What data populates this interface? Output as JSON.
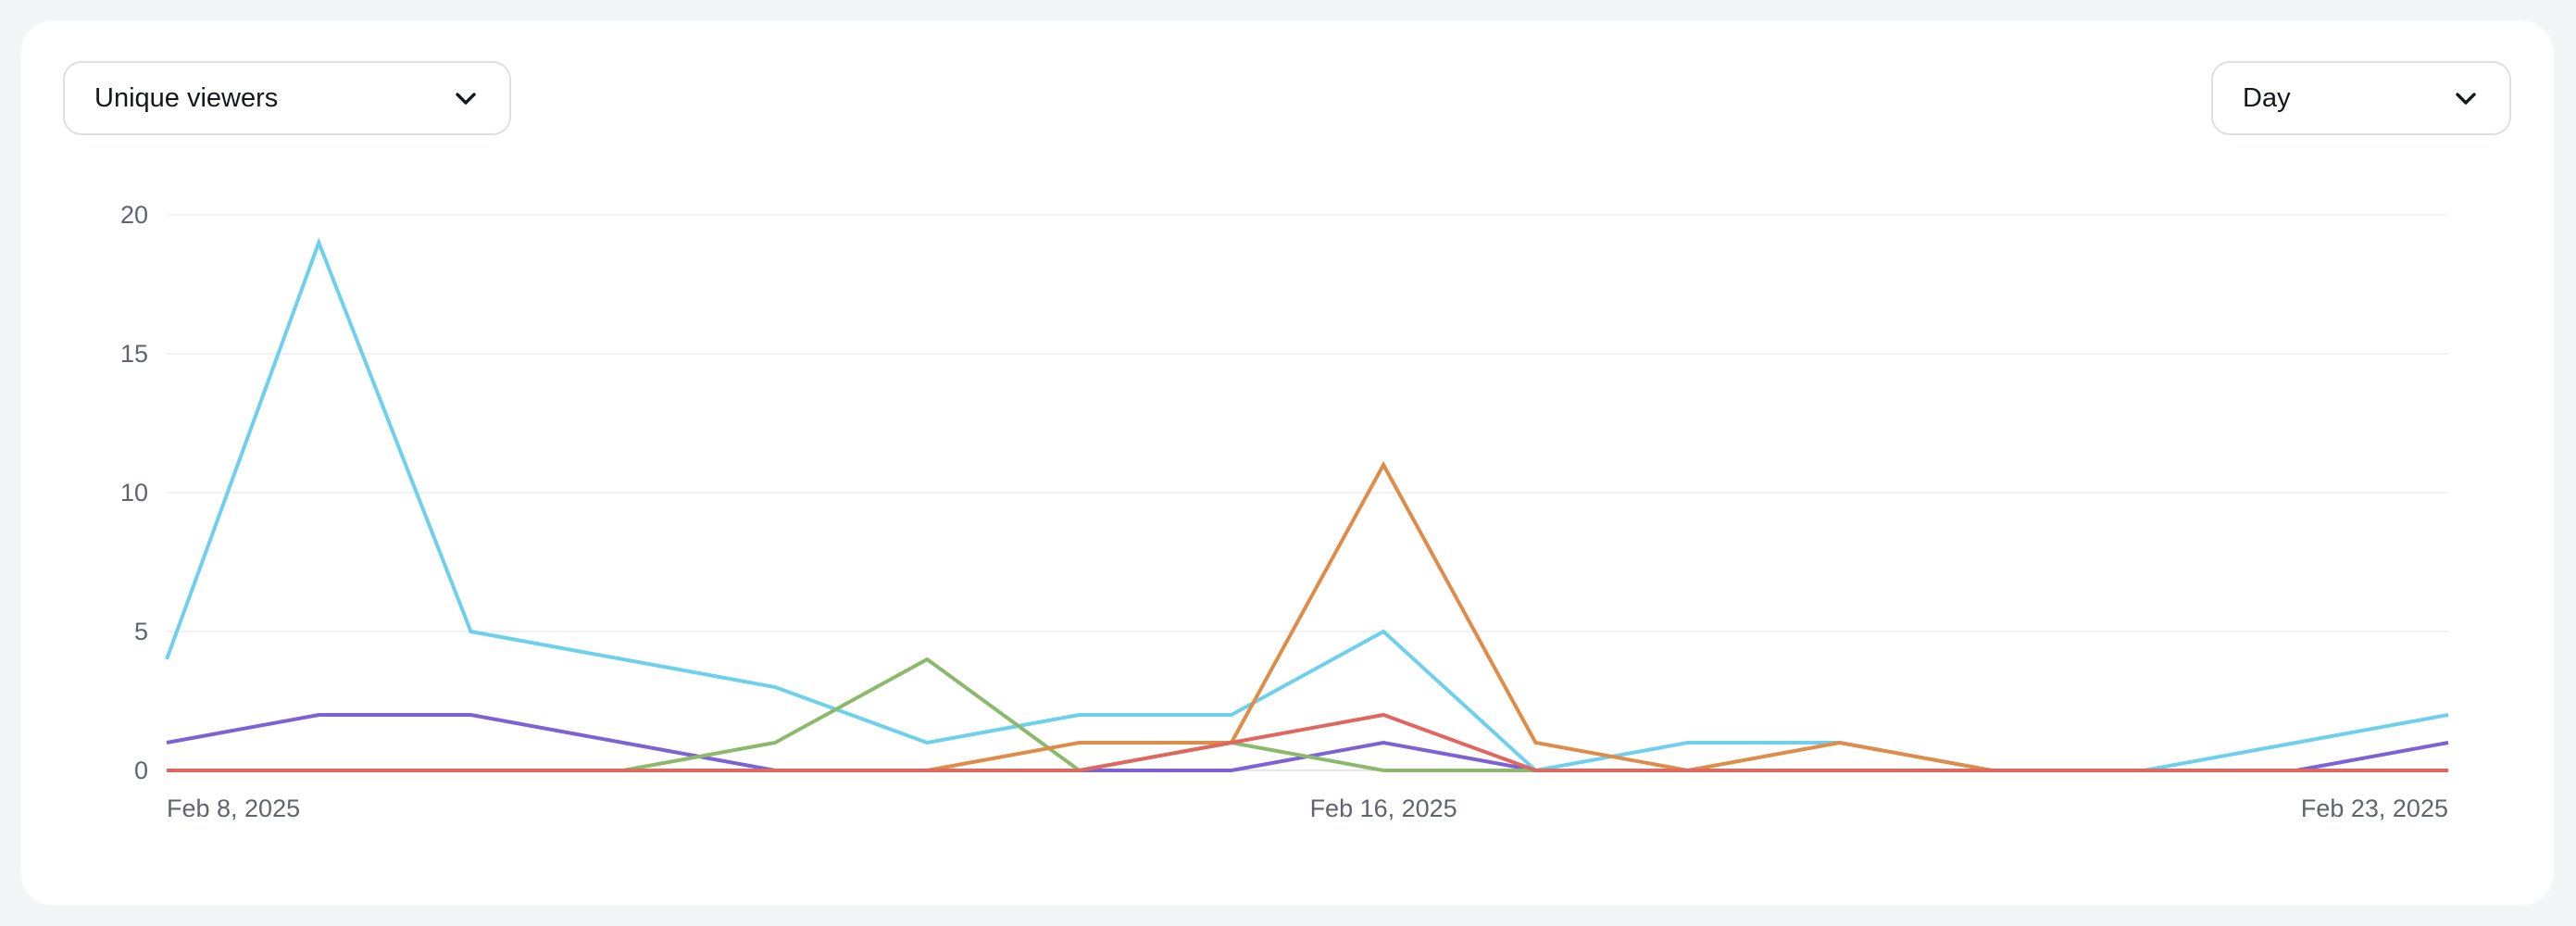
{
  "controls": {
    "metric_label": "Unique viewers",
    "period_label": "Day"
  },
  "chart_data": {
    "type": "line",
    "title": "",
    "xlabel": "",
    "ylabel": "",
    "ylim": [
      0,
      20
    ],
    "y_ticks": [
      "0",
      "5",
      "10",
      "15",
      "20"
    ],
    "x_tick_labels": [
      {
        "date": "2025-02-08",
        "label": "Feb 8, 2025"
      },
      {
        "date": "2025-02-16",
        "label": "Feb 16, 2025"
      },
      {
        "date": "2025-02-23",
        "label": "Feb 23, 2025"
      }
    ],
    "x": [
      "2025-02-08",
      "2025-02-09",
      "2025-02-10",
      "2025-02-11",
      "2025-02-12",
      "2025-02-13",
      "2025-02-14",
      "2025-02-15",
      "2025-02-16",
      "2025-02-17",
      "2025-02-18",
      "2025-02-19",
      "2025-02-20",
      "2025-02-21",
      "2025-02-22",
      "2025-02-23"
    ],
    "grid": true,
    "legend": "none",
    "series": [
      {
        "color": "#6dd0ec",
        "values": [
          4,
          19,
          5,
          4,
          3,
          1,
          2,
          2,
          5,
          0,
          1,
          1,
          0,
          0,
          1,
          2
        ]
      },
      {
        "color": "#7c62d4",
        "values": [
          1,
          2,
          2,
          1,
          0,
          0,
          0,
          0,
          1,
          0,
          0,
          0,
          0,
          0,
          0,
          1
        ]
      },
      {
        "color": "#8cb96b",
        "values": [
          0,
          0,
          0,
          0,
          1,
          4,
          0,
          1,
          0,
          0,
          0,
          0,
          0,
          0,
          0,
          0
        ]
      },
      {
        "color": "#de8c47",
        "values": [
          0,
          0,
          0,
          0,
          0,
          0,
          1,
          1,
          11,
          1,
          0,
          1,
          0,
          0,
          0,
          0
        ]
      },
      {
        "color": "#e0675f",
        "values": [
          0,
          0,
          0,
          0,
          0,
          0,
          0,
          1,
          2,
          0,
          0,
          0,
          0,
          0,
          0,
          0
        ]
      }
    ]
  }
}
